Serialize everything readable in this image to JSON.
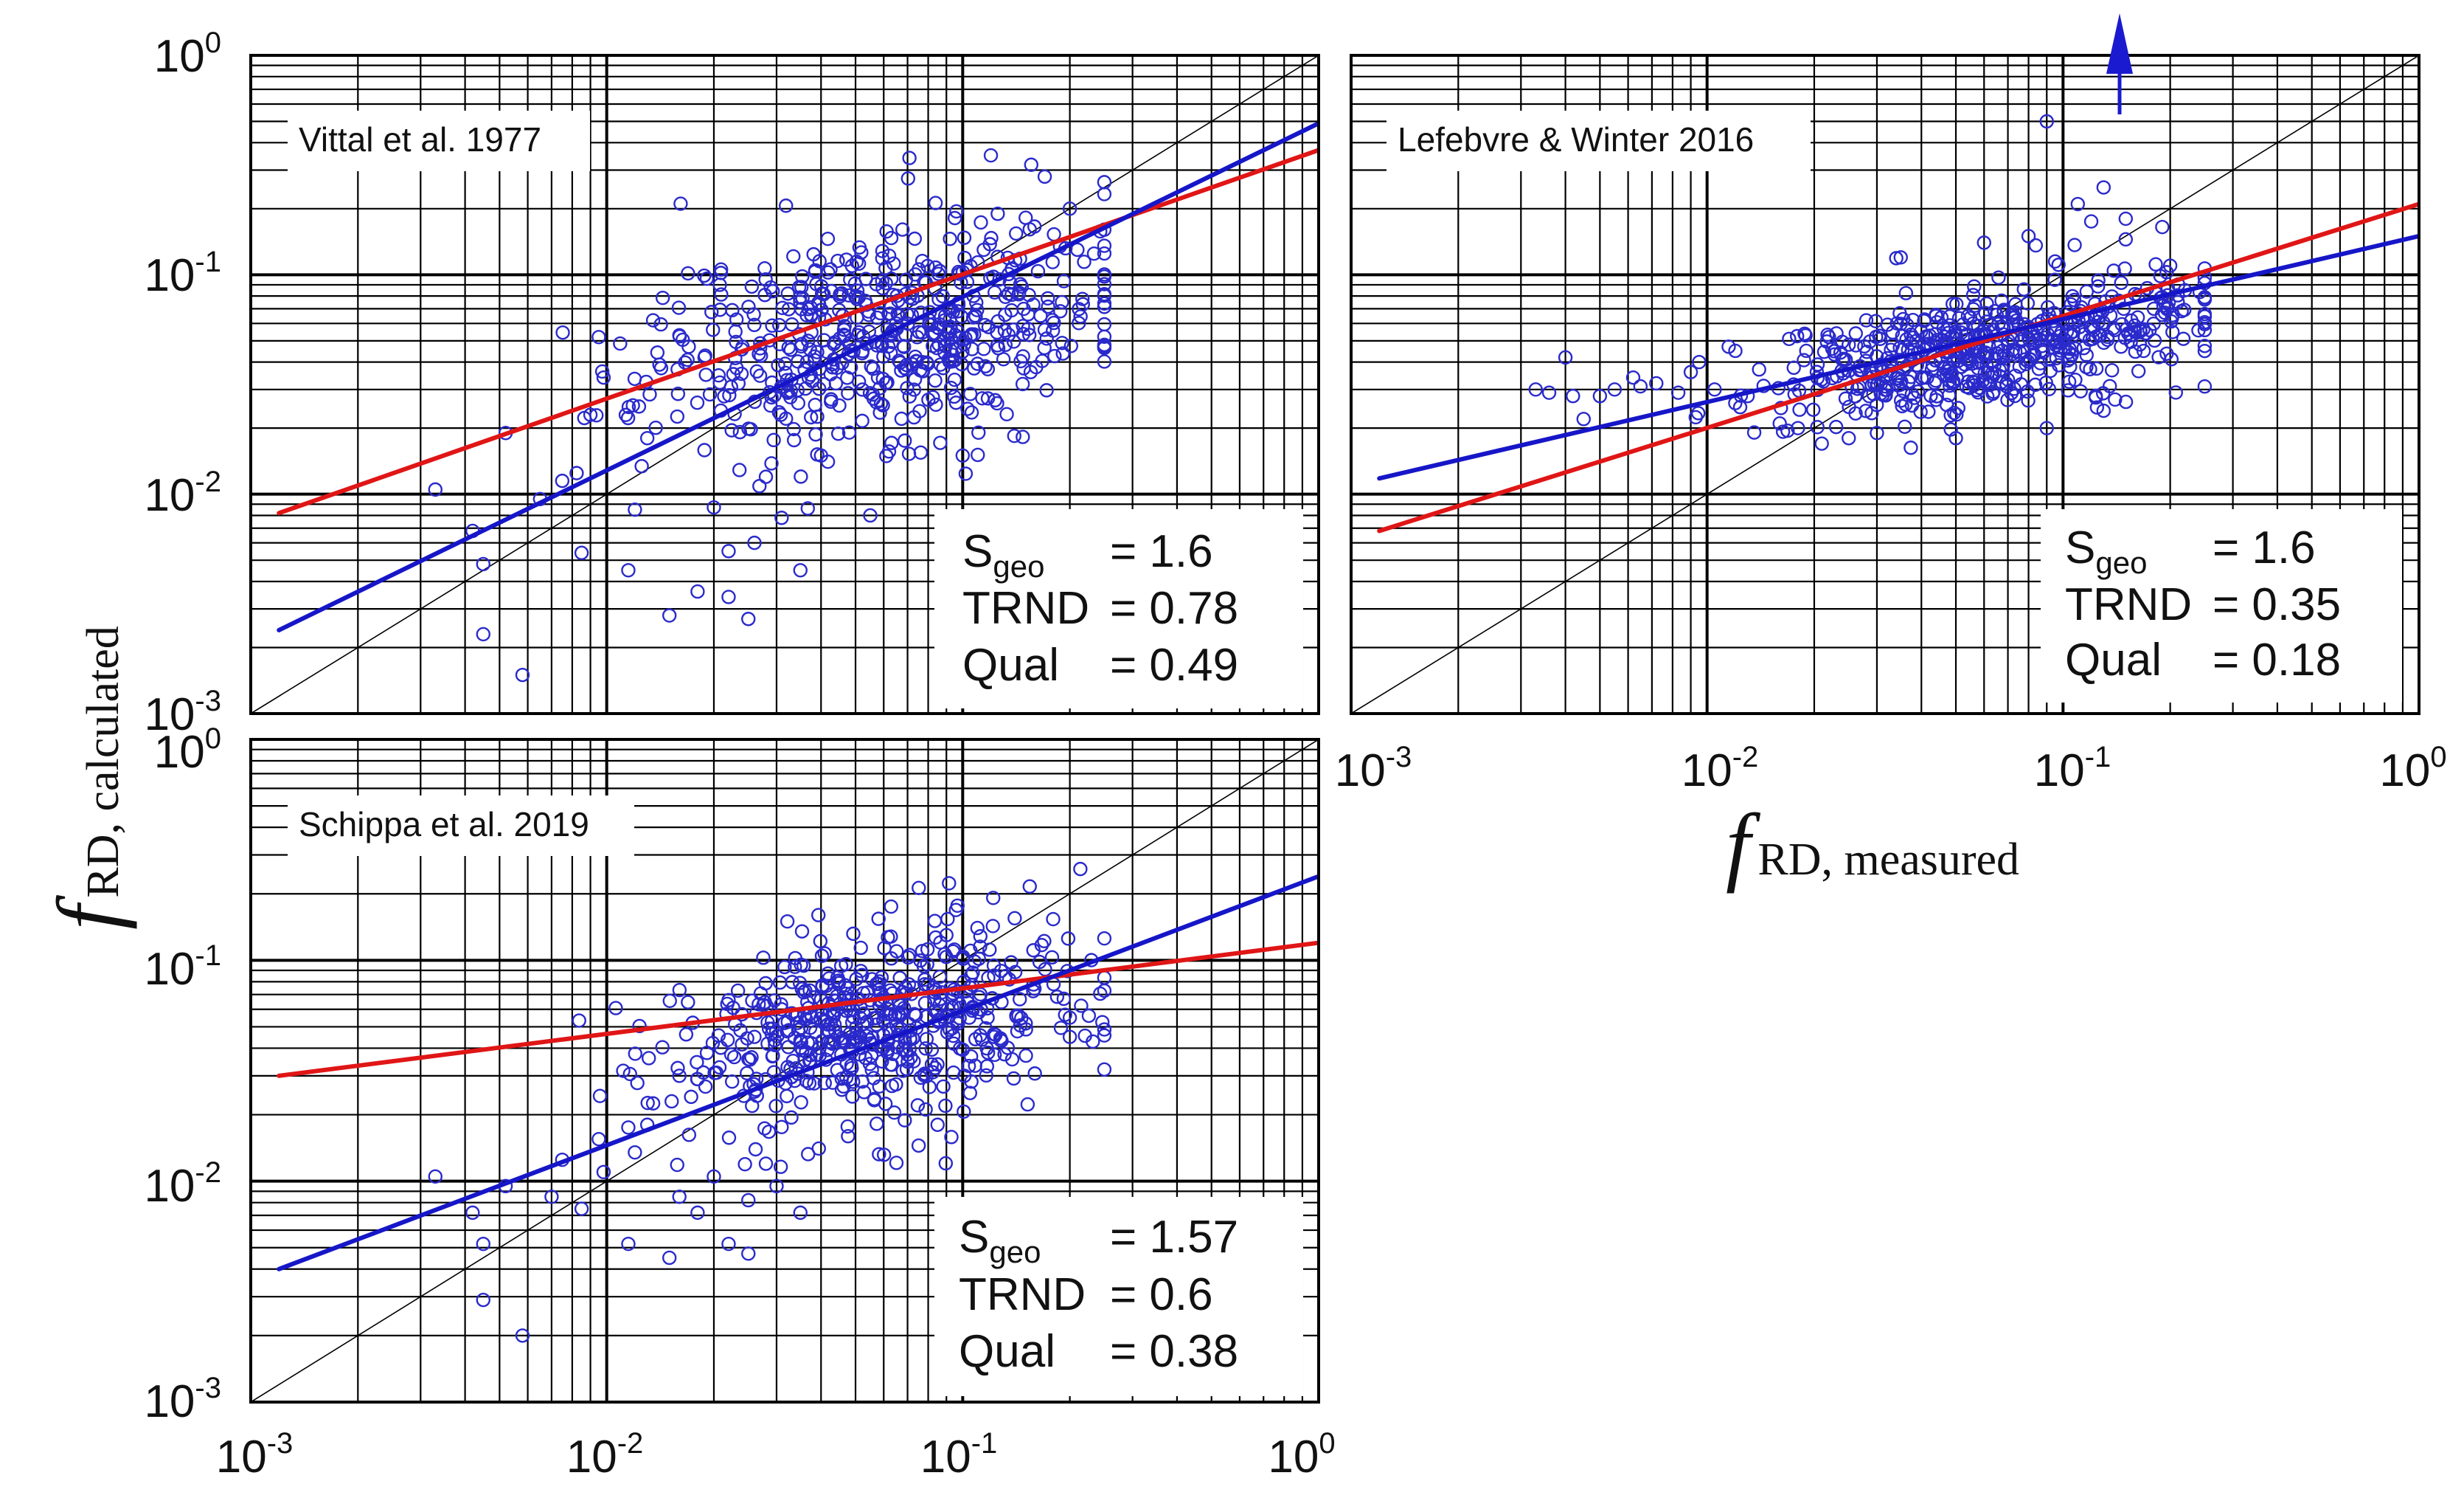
{
  "axis_labels": {
    "y_symbol": "f",
    "y_subscript": "RD, calculated",
    "x_symbol": "f",
    "x_subscript": "RD, measured"
  },
  "tick_labels": [
    {
      "base": "10",
      "exp": "-3"
    },
    {
      "base": "10",
      "exp": "-2"
    },
    {
      "base": "10",
      "exp": "-1"
    },
    {
      "base": "10",
      "exp": "0"
    }
  ],
  "colors": {
    "scatter": "#2a2acc",
    "fit_blue": "#1616c8",
    "fit_red": "#e01616",
    "grid": "#000000",
    "diagonal": "#000000",
    "arrow": "#1a1ad0"
  },
  "chart_data": [
    {
      "type": "scatter",
      "title": "Vittal et al. 1977",
      "xlabel": "f RD, measured",
      "ylabel": "f RD, calculated",
      "xscale": "log",
      "yscale": "log",
      "xlim": [
        0.001,
        1
      ],
      "ylim": [
        0.001,
        1
      ],
      "grid": true,
      "identity_line": true,
      "stats": [
        {
          "name": "S",
          "sub": "geo",
          "value": "= 1.6"
        },
        {
          "name": "TRND",
          "sub": "",
          "value": "= 0.78"
        },
        {
          "name": "Qual",
          "sub": "",
          "value": "= 0.49"
        }
      ],
      "fit_lines": [
        {
          "name": "red fit",
          "color": "#e01616",
          "x": [
            0.0012,
            1
          ],
          "y": [
            0.0082,
            0.37
          ]
        },
        {
          "name": "blue fit",
          "color": "#1616c8",
          "x": [
            0.0012,
            1
          ],
          "y": [
            0.0024,
            0.49
          ]
        }
      ],
      "outlier_arrow": false,
      "seed": 11,
      "n_points": 560,
      "cloud_center": [
        0.06,
        0.055
      ],
      "cloud_spread": [
        0.32,
        0.25
      ],
      "notable_points": [
        [
          0.0033,
          0.0105
        ],
        [
          0.0042,
          0.0068
        ],
        [
          0.0045,
          0.0048
        ],
        [
          0.0045,
          0.0023
        ],
        [
          0.0058,
          0.0015
        ],
        [
          0.0052,
          0.019
        ],
        [
          0.0075,
          0.0115
        ],
        [
          0.0098,
          0.034
        ],
        [
          0.0115,
          0.0045
        ],
        [
          0.015,
          0.0028
        ],
        [
          0.018,
          0.0036
        ],
        [
          0.022,
          0.0034
        ],
        [
          0.025,
          0.0027
        ],
        [
          0.035,
          0.0045
        ],
        [
          0.12,
          0.35
        ],
        [
          0.17,
          0.28
        ],
        [
          0.2,
          0.2
        ],
        [
          0.21,
          0.13
        ],
        [
          0.19,
          0.075
        ],
        [
          0.1,
          0.015
        ],
        [
          0.0095,
          0.052
        ],
        [
          0.0135,
          0.062
        ],
        [
          0.016,
          0.053
        ],
        [
          0.012,
          0.0085
        ],
        [
          0.0085,
          0.0054
        ],
        [
          0.026,
          0.006
        ],
        [
          0.028,
          0.012
        ],
        [
          0.022,
          0.0055
        ],
        [
          0.031,
          0.0078
        ],
        [
          0.02,
          0.0087
        ],
        [
          0.013,
          0.018
        ],
        [
          0.009,
          0.023
        ],
        [
          0.0065,
          0.0095
        ],
        [
          0.04,
          0.015
        ],
        [
          0.055,
          0.008
        ],
        [
          0.019,
          0.035
        ],
        [
          0.017,
          0.047
        ],
        [
          0.25,
          0.125
        ]
      ]
    },
    {
      "type": "scatter",
      "title": "Lefebvre & Winter 2016",
      "xlabel": "f RD, measured",
      "ylabel": "f RD, calculated",
      "xscale": "log",
      "yscale": "log",
      "xlim": [
        0.001,
        1
      ],
      "ylim": [
        0.001,
        1
      ],
      "grid": true,
      "identity_line": true,
      "stats": [
        {
          "name": "S",
          "sub": "geo",
          "value": "= 1.6"
        },
        {
          "name": "TRND",
          "sub": "",
          "value": "= 0.35"
        },
        {
          "name": "Qual",
          "sub": "",
          "value": "= 0.18"
        }
      ],
      "fit_lines": [
        {
          "name": "red fit",
          "color": "#e01616",
          "x": [
            0.0012,
            1
          ],
          "y": [
            0.0068,
            0.21
          ]
        },
        {
          "name": "blue fit",
          "color": "#1616c8",
          "x": [
            0.0012,
            1
          ],
          "y": [
            0.0118,
            0.15
          ]
        }
      ],
      "outlier_arrow": true,
      "seed": 29,
      "n_points": 560,
      "cloud_center": [
        0.06,
        0.045
      ],
      "cloud_spread": [
        0.3,
        0.13
      ],
      "notable_points": [
        [
          0.0033,
          0.03
        ],
        [
          0.0036,
          0.029
        ],
        [
          0.004,
          0.042
        ],
        [
          0.0042,
          0.028
        ],
        [
          0.0045,
          0.022
        ],
        [
          0.005,
          0.028
        ],
        [
          0.0055,
          0.03
        ],
        [
          0.0062,
          0.034
        ],
        [
          0.0065,
          0.031
        ],
        [
          0.0072,
          0.032
        ],
        [
          0.0083,
          0.029
        ],
        [
          0.009,
          0.036
        ],
        [
          0.0105,
          0.03
        ],
        [
          0.0115,
          0.047
        ],
        [
          0.012,
          0.026
        ],
        [
          0.0095,
          0.04
        ],
        [
          0.013,
          0.028
        ],
        [
          0.014,
          0.037
        ],
        [
          0.016,
          0.021
        ],
        [
          0.017,
          0.051
        ],
        [
          0.018,
          0.02
        ],
        [
          0.019,
          0.045
        ],
        [
          0.021,
          0.017
        ],
        [
          0.022,
          0.052
        ],
        [
          0.025,
          0.018
        ],
        [
          0.035,
          0.12
        ],
        [
          0.034,
          0.119
        ],
        [
          0.09,
          0.5
        ],
        [
          0.15,
          0.145
        ],
        [
          0.2,
          0.11
        ],
        [
          0.21,
          0.075
        ],
        [
          0.22,
          0.085
        ],
        [
          0.15,
          0.18
        ],
        [
          0.19,
          0.165
        ],
        [
          0.12,
          0.175
        ],
        [
          0.13,
          0.25
        ],
        [
          0.06,
          0.14
        ],
        [
          0.08,
          0.15
        ],
        [
          0.11,
          0.21
        ],
        [
          0.095,
          0.115
        ],
        [
          0.025,
          0.048
        ],
        [
          0.028,
          0.062
        ],
        [
          0.09,
          0.02
        ],
        [
          0.13,
          0.024
        ],
        [
          0.14,
          0.027
        ],
        [
          0.05,
          0.018
        ],
        [
          0.03,
          0.019
        ],
        [
          0.18,
          0.07
        ]
      ]
    },
    {
      "type": "scatter",
      "title": "Schippa et al. 2019",
      "xlabel": "f RD, measured",
      "ylabel": "f RD, calculated",
      "xscale": "log",
      "yscale": "log",
      "xlim": [
        0.001,
        1
      ],
      "ylim": [
        0.001,
        1
      ],
      "grid": true,
      "identity_line": true,
      "stats": [
        {
          "name": "S",
          "sub": "geo",
          "value": "= 1.57"
        },
        {
          "name": "TRND",
          "sub": "",
          "value": "= 0.6"
        },
        {
          "name": "Qual",
          "sub": "",
          "value": "= 0.38"
        }
      ],
      "fit_lines": [
        {
          "name": "red fit",
          "color": "#e01616",
          "x": [
            0.0012,
            1
          ],
          "y": [
            0.03,
            0.12
          ]
        },
        {
          "name": "blue fit",
          "color": "#1616c8",
          "x": [
            0.0012,
            1
          ],
          "y": [
            0.004,
            0.24
          ]
        }
      ],
      "outlier_arrow": false,
      "seed": 53,
      "n_points": 560,
      "cloud_center": [
        0.06,
        0.05
      ],
      "cloud_spread": [
        0.3,
        0.22
      ],
      "notable_points": [
        [
          0.0033,
          0.0105
        ],
        [
          0.0042,
          0.0072
        ],
        [
          0.0045,
          0.0052
        ],
        [
          0.0045,
          0.0029
        ],
        [
          0.0058,
          0.002
        ],
        [
          0.0052,
          0.0095
        ],
        [
          0.0075,
          0.0125
        ],
        [
          0.0098,
          0.011
        ],
        [
          0.0115,
          0.0052
        ],
        [
          0.015,
          0.0045
        ],
        [
          0.018,
          0.0072
        ],
        [
          0.022,
          0.0052
        ],
        [
          0.025,
          0.0047
        ],
        [
          0.035,
          0.0072
        ],
        [
          0.14,
          0.155
        ],
        [
          0.11,
          0.14
        ],
        [
          0.09,
          0.13
        ],
        [
          0.2,
          0.055
        ],
        [
          0.2,
          0.045
        ],
        [
          0.18,
          0.078
        ],
        [
          0.085,
          0.018
        ],
        [
          0.0095,
          0.0155
        ],
        [
          0.0135,
          0.0225
        ],
        [
          0.016,
          0.03
        ],
        [
          0.012,
          0.0135
        ],
        [
          0.0085,
          0.0075
        ],
        [
          0.026,
          0.045
        ],
        [
          0.028,
          0.012
        ],
        [
          0.022,
          0.066
        ],
        [
          0.031,
          0.06
        ],
        [
          0.02,
          0.0105
        ],
        [
          0.013,
          0.018
        ],
        [
          0.018,
          0.029
        ],
        [
          0.007,
          0.0085
        ],
        [
          0.0115,
          0.0175
        ],
        [
          0.016,
          0.0085
        ],
        [
          0.025,
          0.0082
        ],
        [
          0.03,
          0.0095
        ]
      ]
    }
  ]
}
